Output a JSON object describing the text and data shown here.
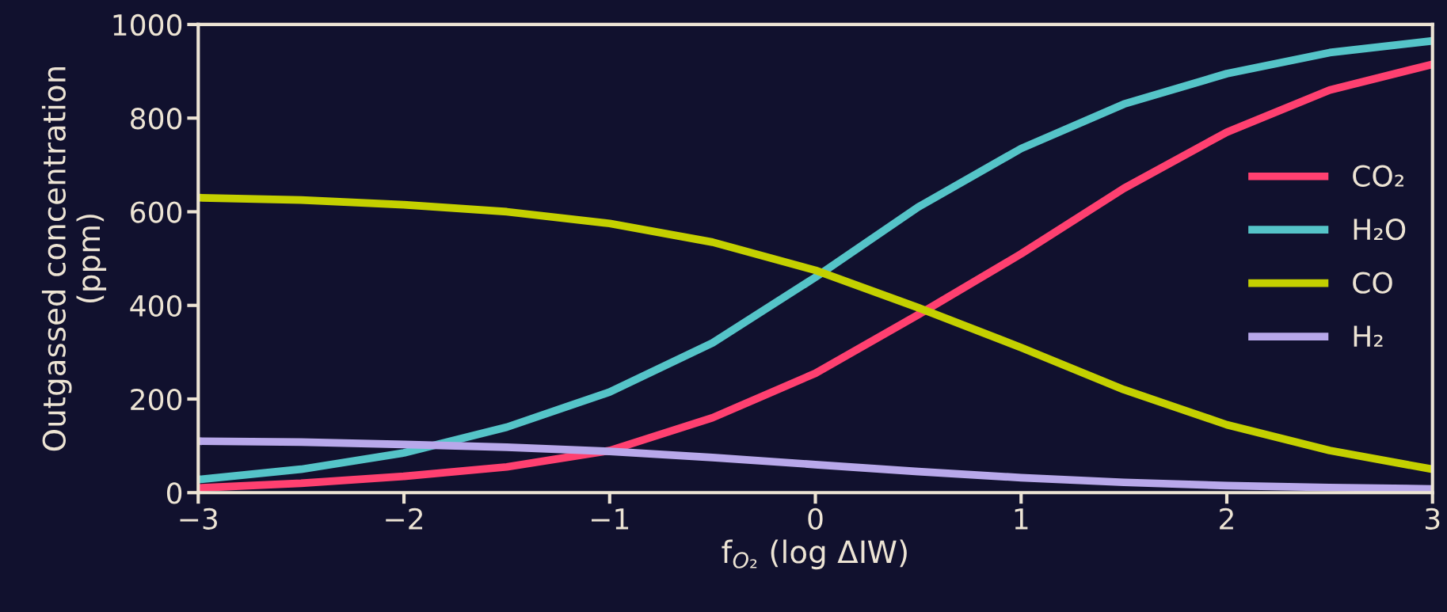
{
  "chart_data": {
    "type": "line",
    "xlabel": "f$_{O₂}$ (log ΔIW)",
    "ylabel": "Outgassed concentration\n(ppm)",
    "x": [
      -3,
      -2.5,
      -2,
      -1.5,
      -1,
      -0.5,
      0,
      0.5,
      1,
      1.5,
      2,
      2.5,
      3
    ],
    "series": [
      {
        "name": "CO₂",
        "color": "#ff4070",
        "values": [
          10,
          20,
          35,
          55,
          90,
          160,
          255,
          380,
          510,
          650,
          770,
          860,
          915
        ]
      },
      {
        "name": "H₂O",
        "color": "#55c4c8",
        "values": [
          28,
          50,
          85,
          140,
          215,
          320,
          460,
          610,
          735,
          830,
          895,
          940,
          965
        ]
      },
      {
        "name": "CO",
        "color": "#c4d000",
        "values": [
          630,
          625,
          615,
          600,
          575,
          535,
          475,
          395,
          310,
          220,
          145,
          90,
          50
        ]
      },
      {
        "name": "H₂",
        "color": "#b8a8ea",
        "values": [
          110,
          108,
          103,
          97,
          88,
          75,
          60,
          45,
          32,
          22,
          15,
          11,
          8
        ]
      }
    ],
    "xlim": [
      -3,
      3
    ],
    "ylim": [
      0,
      1000
    ],
    "xticks": [
      {
        "value": -3,
        "label": "−3"
      },
      {
        "value": -2,
        "label": "−2"
      },
      {
        "value": -1,
        "label": "−1"
      },
      0,
      1,
      2,
      3
    ],
    "yticks": [
      0,
      200,
      400,
      600,
      800,
      1000
    ],
    "grid": false,
    "legend": "right",
    "marker": "none",
    "line_style": "solid"
  }
}
